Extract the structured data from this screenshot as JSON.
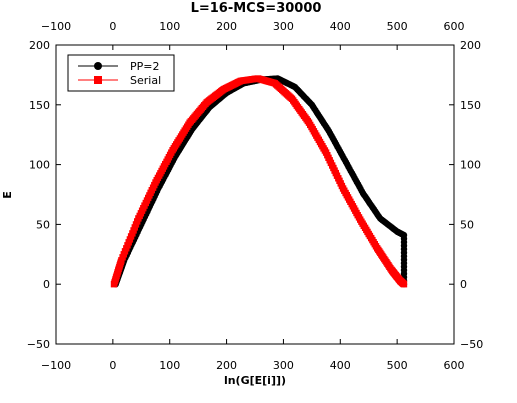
{
  "chart_data": {
    "type": "scatter",
    "title": "L=16-MCS=30000",
    "xlabel": "ln(G[E[i]])",
    "ylabel": "E",
    "xlim": [
      -100,
      600
    ],
    "ylim": [
      -50,
      200
    ],
    "xticks": [
      -100,
      0,
      100,
      200,
      300,
      400,
      500,
      600
    ],
    "yticks": [
      -50,
      0,
      50,
      100,
      150,
      200
    ],
    "tick_labels_x": [
      "−100",
      "0",
      "100",
      "200",
      "300",
      "400",
      "500",
      "600"
    ],
    "tick_labels_y": [
      "−50",
      "0",
      "50",
      "100",
      "150",
      "200"
    ],
    "legend_position": "top-left",
    "grid": false,
    "series": [
      {
        "name": "PP=2",
        "color": "#000000",
        "marker": "circle",
        "points": [
          [
            5,
            0
          ],
          [
            20,
            20
          ],
          [
            50,
            50
          ],
          [
            80,
            80
          ],
          [
            110,
            107
          ],
          [
            140,
            130
          ],
          [
            170,
            148
          ],
          [
            200,
            160
          ],
          [
            230,
            168
          ],
          [
            260,
            171
          ],
          [
            290,
            172
          ],
          [
            320,
            165
          ],
          [
            350,
            150
          ],
          [
            380,
            128
          ],
          [
            410,
            102
          ],
          [
            440,
            76
          ],
          [
            470,
            55
          ],
          [
            500,
            44
          ],
          [
            512,
            41
          ],
          [
            512,
            0
          ]
        ]
      },
      {
        "name": "Serial",
        "color": "#ff0000",
        "marker": "square",
        "points": [
          [
            2,
            0
          ],
          [
            15,
            20
          ],
          [
            45,
            55
          ],
          [
            75,
            85
          ],
          [
            105,
            112
          ],
          [
            135,
            135
          ],
          [
            165,
            152
          ],
          [
            195,
            163
          ],
          [
            225,
            170
          ],
          [
            255,
            172
          ],
          [
            285,
            168
          ],
          [
            315,
            155
          ],
          [
            345,
            135
          ],
          [
            375,
            110
          ],
          [
            405,
            80
          ],
          [
            435,
            54
          ],
          [
            465,
            30
          ],
          [
            490,
            12
          ],
          [
            505,
            3
          ],
          [
            512,
            0
          ]
        ]
      }
    ]
  }
}
